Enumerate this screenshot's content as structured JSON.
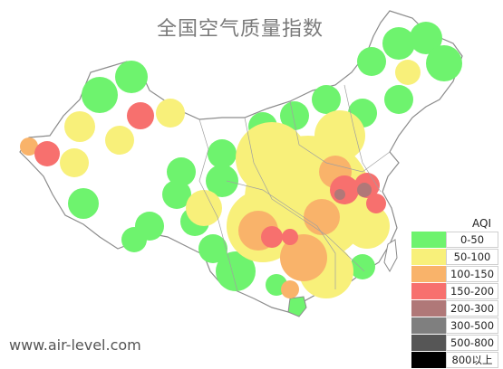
{
  "title": "全国空气质量指数",
  "source": "www.air-level.com",
  "legend": {
    "title": "AQI",
    "items": [
      {
        "label": "0-50",
        "color": "#6ef36e"
      },
      {
        "label": "50-100",
        "color": "#f8f07a"
      },
      {
        "label": "100-150",
        "color": "#f9b36a"
      },
      {
        "label": "150-200",
        "color": "#f7706e"
      },
      {
        "label": "200-300",
        "color": "#b07878"
      },
      {
        "label": "300-500",
        "color": "#7f7f7f"
      },
      {
        "label": "500-800",
        "color": "#565656"
      },
      {
        "label": "800以上",
        "color": "#000000"
      }
    ]
  },
  "colors": {
    "outline": "#8c8c8c",
    "province_line": "#a0a0a0"
  }
}
